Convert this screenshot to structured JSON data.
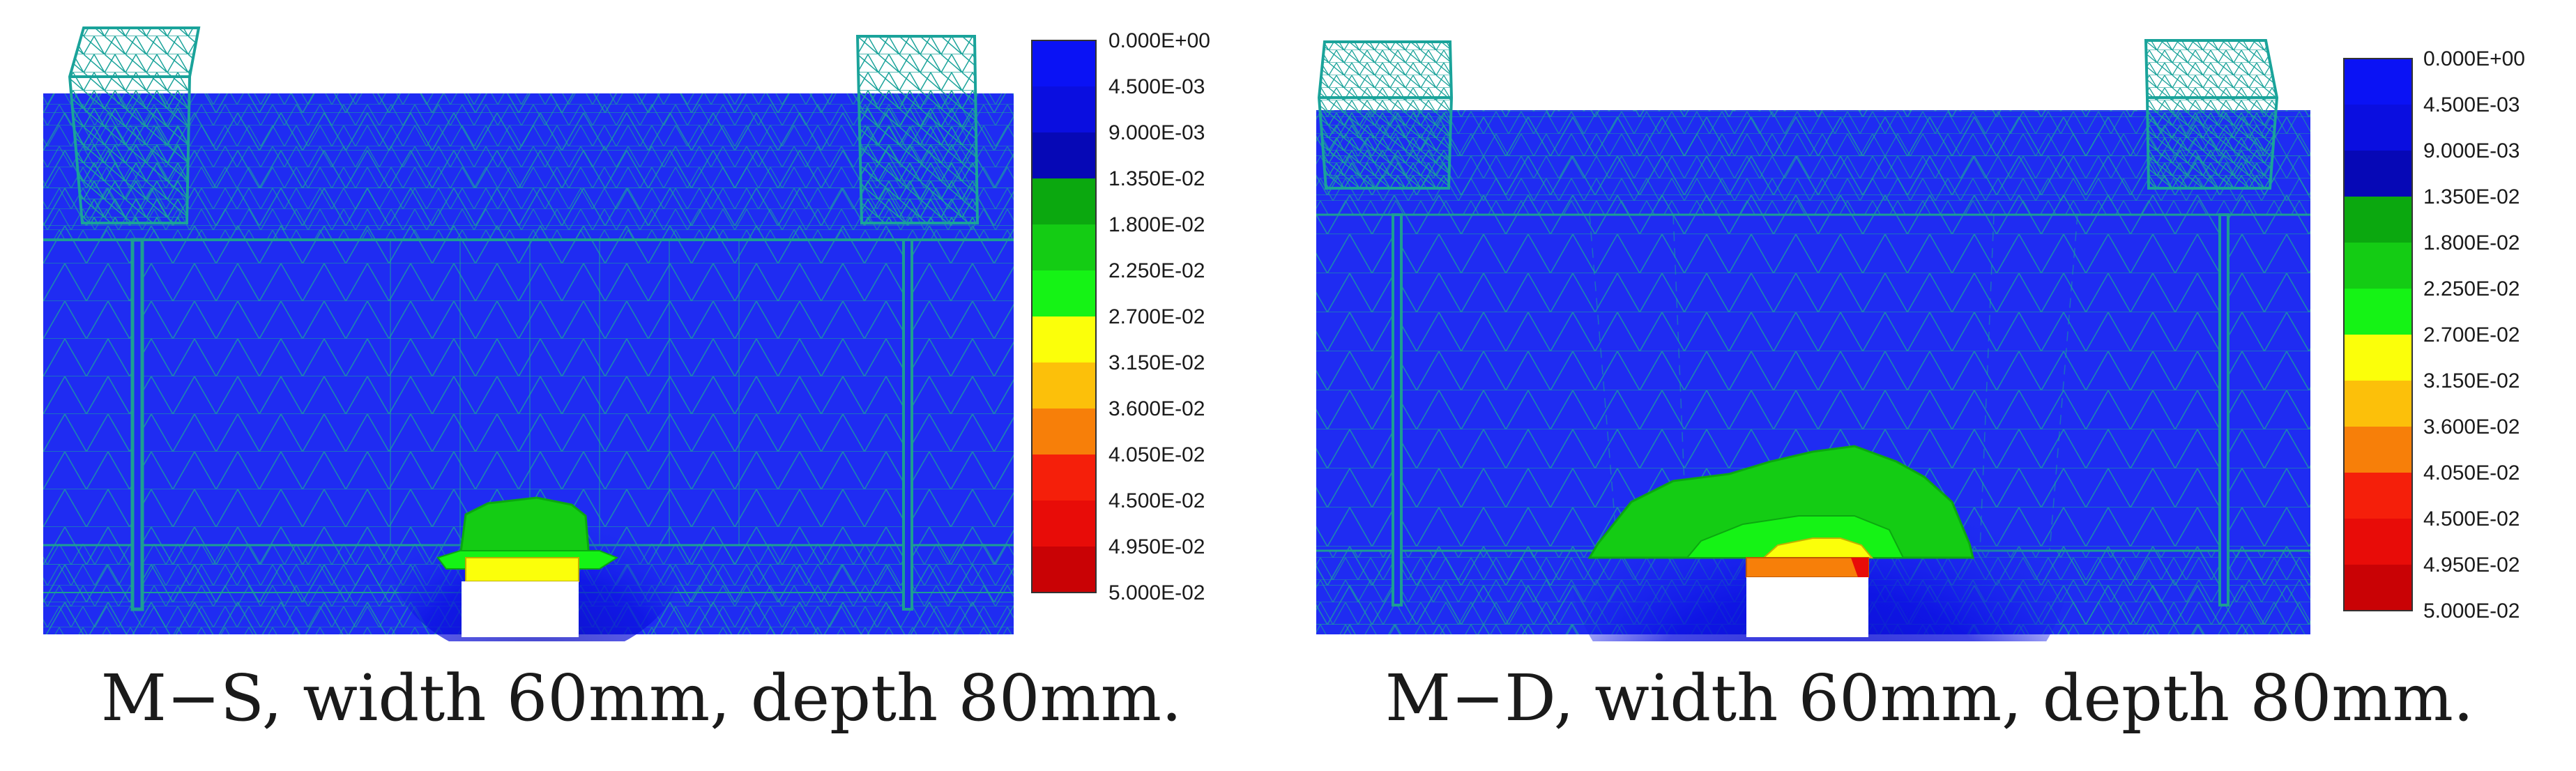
{
  "colors": {
    "background_blue": "#1f2cf2",
    "mesh_line": "#1aa39a",
    "frame_line": "#1c9e93"
  },
  "legend": {
    "labels": [
      "0.000E+00",
      "4.500E-03",
      "9.000E-03",
      "1.350E-02",
      "1.800E-02",
      "2.250E-02",
      "2.700E-02",
      "3.150E-02",
      "3.600E-02",
      "4.050E-02",
      "4.500E-02",
      "4.950E-02",
      "5.000E-02"
    ],
    "colors": [
      "#0a12f5",
      "#0a0ee0",
      "#0608b6",
      "#0ba80f",
      "#14cc14",
      "#15f315",
      "#fbff0a",
      "#fcc00a",
      "#f77f09",
      "#f51f0a",
      "#e80c08",
      "#c90205"
    ]
  },
  "panels": [
    {
      "caption": "M−S, width 60mm, depth 80mm."
    },
    {
      "caption": "M−D, width 60mm, depth 80mm."
    }
  ]
}
